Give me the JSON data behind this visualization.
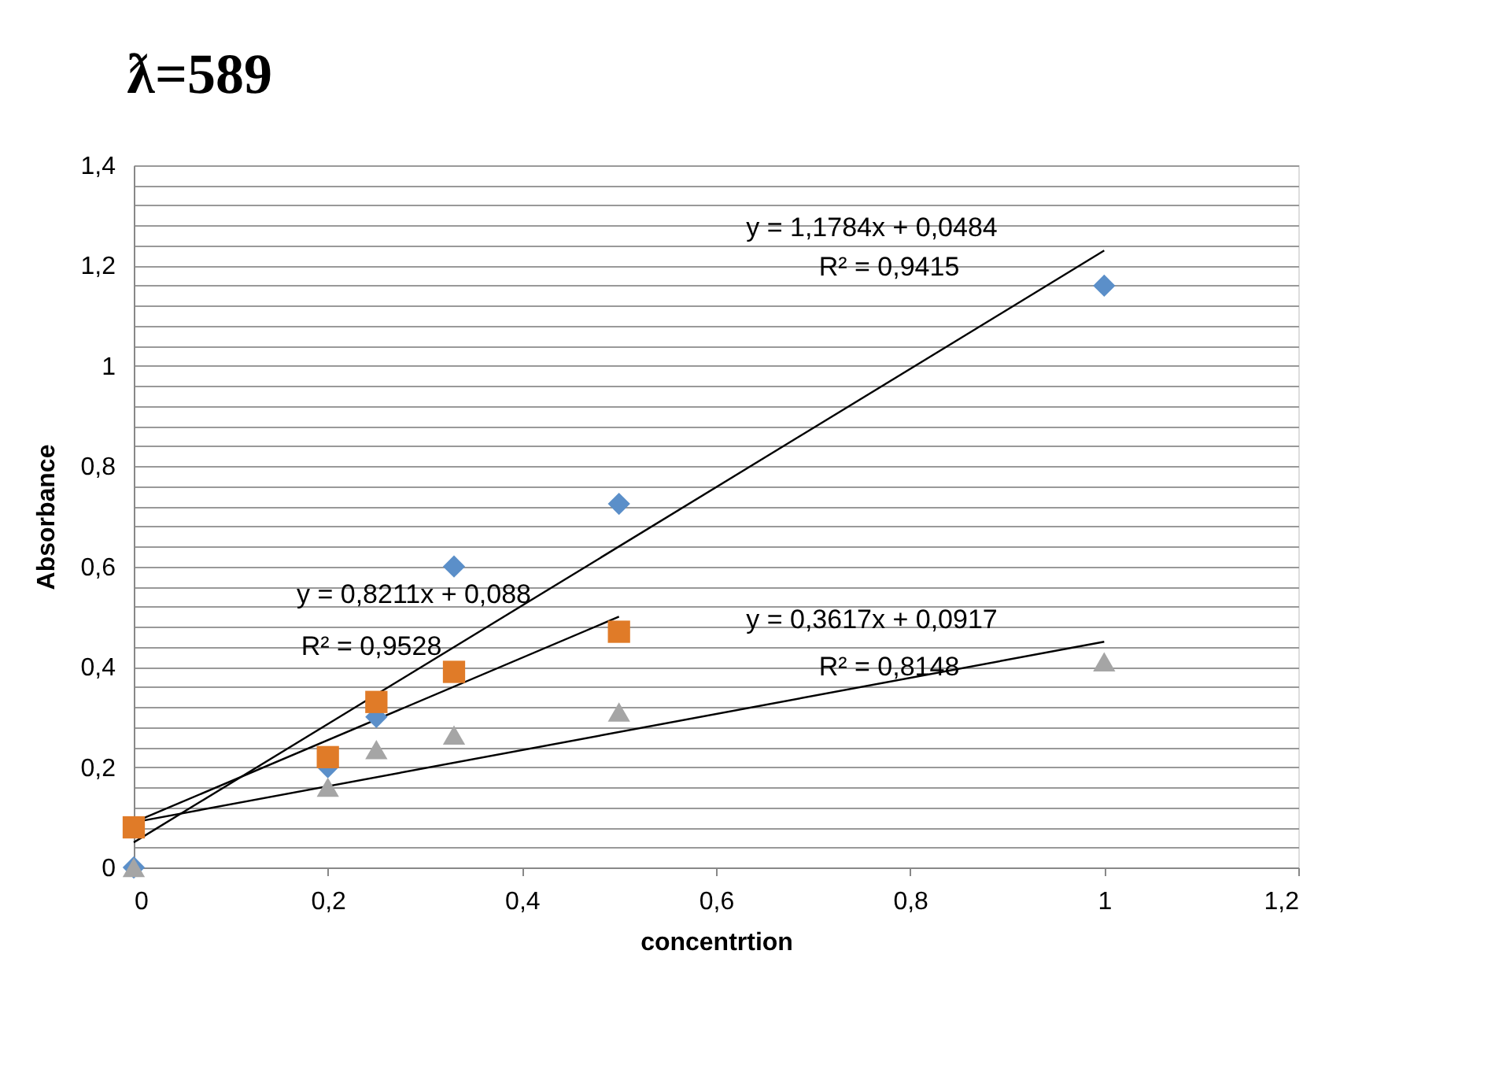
{
  "chart_data": {
    "type": "scatter",
    "title": "ƛ=589",
    "xlabel": "concentrtion",
    "ylabel": "Absorbance",
    "xlim": [
      0,
      1.2
    ],
    "xticks": [
      0,
      {
        "value": 0.2,
        "label": "0,2"
      },
      {
        "value": 0.4,
        "label": "0,4"
      },
      {
        "value": 0.6,
        "label": "0,6"
      },
      {
        "value": 0.8,
        "label": "0,8"
      },
      1,
      {
        "value": 1.2,
        "label": "1,2"
      }
    ],
    "ylim": [
      0,
      1.4
    ],
    "yticks": [
      0,
      {
        "value": 0.04,
        "label": null
      },
      {
        "value": 0.08,
        "label": null
      },
      {
        "value": 0.12,
        "label": null
      },
      {
        "value": 0.16,
        "label": null
      },
      {
        "value": 0.2,
        "label": "0,2"
      },
      {
        "value": 0.24,
        "label": null
      },
      {
        "value": 0.28,
        "label": null
      },
      {
        "value": 0.32,
        "label": null
      },
      {
        "value": 0.36,
        "label": null
      },
      {
        "value": 0.4,
        "label": "0,4"
      },
      {
        "value": 0.44,
        "label": null
      },
      {
        "value": 0.48,
        "label": null
      },
      {
        "value": 0.52,
        "label": null
      },
      {
        "value": 0.56,
        "label": null
      },
      {
        "value": 0.6,
        "label": "0,6"
      },
      {
        "value": 0.64,
        "label": null
      },
      {
        "value": 0.68,
        "label": null
      },
      {
        "value": 0.72,
        "label": null
      },
      {
        "value": 0.76,
        "label": null
      },
      {
        "value": 0.8,
        "label": "0,8"
      },
      {
        "value": 0.84,
        "label": null
      },
      {
        "value": 0.88,
        "label": null
      },
      {
        "value": 0.92,
        "label": null
      },
      {
        "value": 0.96,
        "label": null
      },
      1,
      {
        "value": 1.04,
        "label": null
      },
      {
        "value": 1.08,
        "label": null
      },
      {
        "value": 1.12,
        "label": null
      },
      {
        "value": 1.16,
        "label": null
      },
      {
        "value": 1.2,
        "label": "1,2"
      },
      {
        "value": 1.24,
        "label": null
      },
      {
        "value": 1.28,
        "label": null
      },
      {
        "value": 1.32,
        "label": null
      },
      {
        "value": 1.36,
        "label": null
      },
      {
        "value": 1.4,
        "label": "1,4"
      }
    ],
    "grid": "y",
    "series": [
      {
        "type": "line",
        "color": "#000000",
        "marker": "none",
        "x": [
          0,
          1
        ],
        "values": [
          0.05,
          1.23
        ]
      },
      {
        "type": "line",
        "color": "#000000",
        "marker": "none",
        "x": [
          0,
          0.5
        ],
        "values": [
          0.09,
          0.5
        ]
      },
      {
        "type": "line",
        "color": "#000000",
        "marker": "none",
        "x": [
          0,
          1
        ],
        "values": [
          0.09,
          0.45
        ]
      },
      {
        "color": "#5b8fc9",
        "marker": "diamond",
        "x": [
          0,
          0.2,
          0.25,
          0.33,
          0.5,
          1
        ],
        "values": [
          0,
          0.2,
          0.3,
          0.6,
          0.725,
          1.16
        ]
      },
      {
        "color": "#e07b28",
        "marker": "square",
        "x": [
          0,
          0.2,
          0.25,
          0.33,
          0.5
        ],
        "values": [
          0.08,
          0.22,
          0.33,
          0.39,
          0.47
        ]
      },
      {
        "color": "#a5a5a5",
        "marker": "triangle",
        "x": [
          0,
          0.2,
          0.25,
          0.33,
          0.5,
          1
        ],
        "values": [
          0,
          0.16,
          0.235,
          0.264,
          0.31,
          0.41
        ]
      }
    ],
    "annotations": [
      "y = 1,1784x + 0,0484",
      "R² = 0,9415",
      "y = 0,8211x + 0,088",
      "R² = 0,9528",
      "y = 0,3617x + 0,0917",
      "R² = 0,8148"
    ]
  }
}
